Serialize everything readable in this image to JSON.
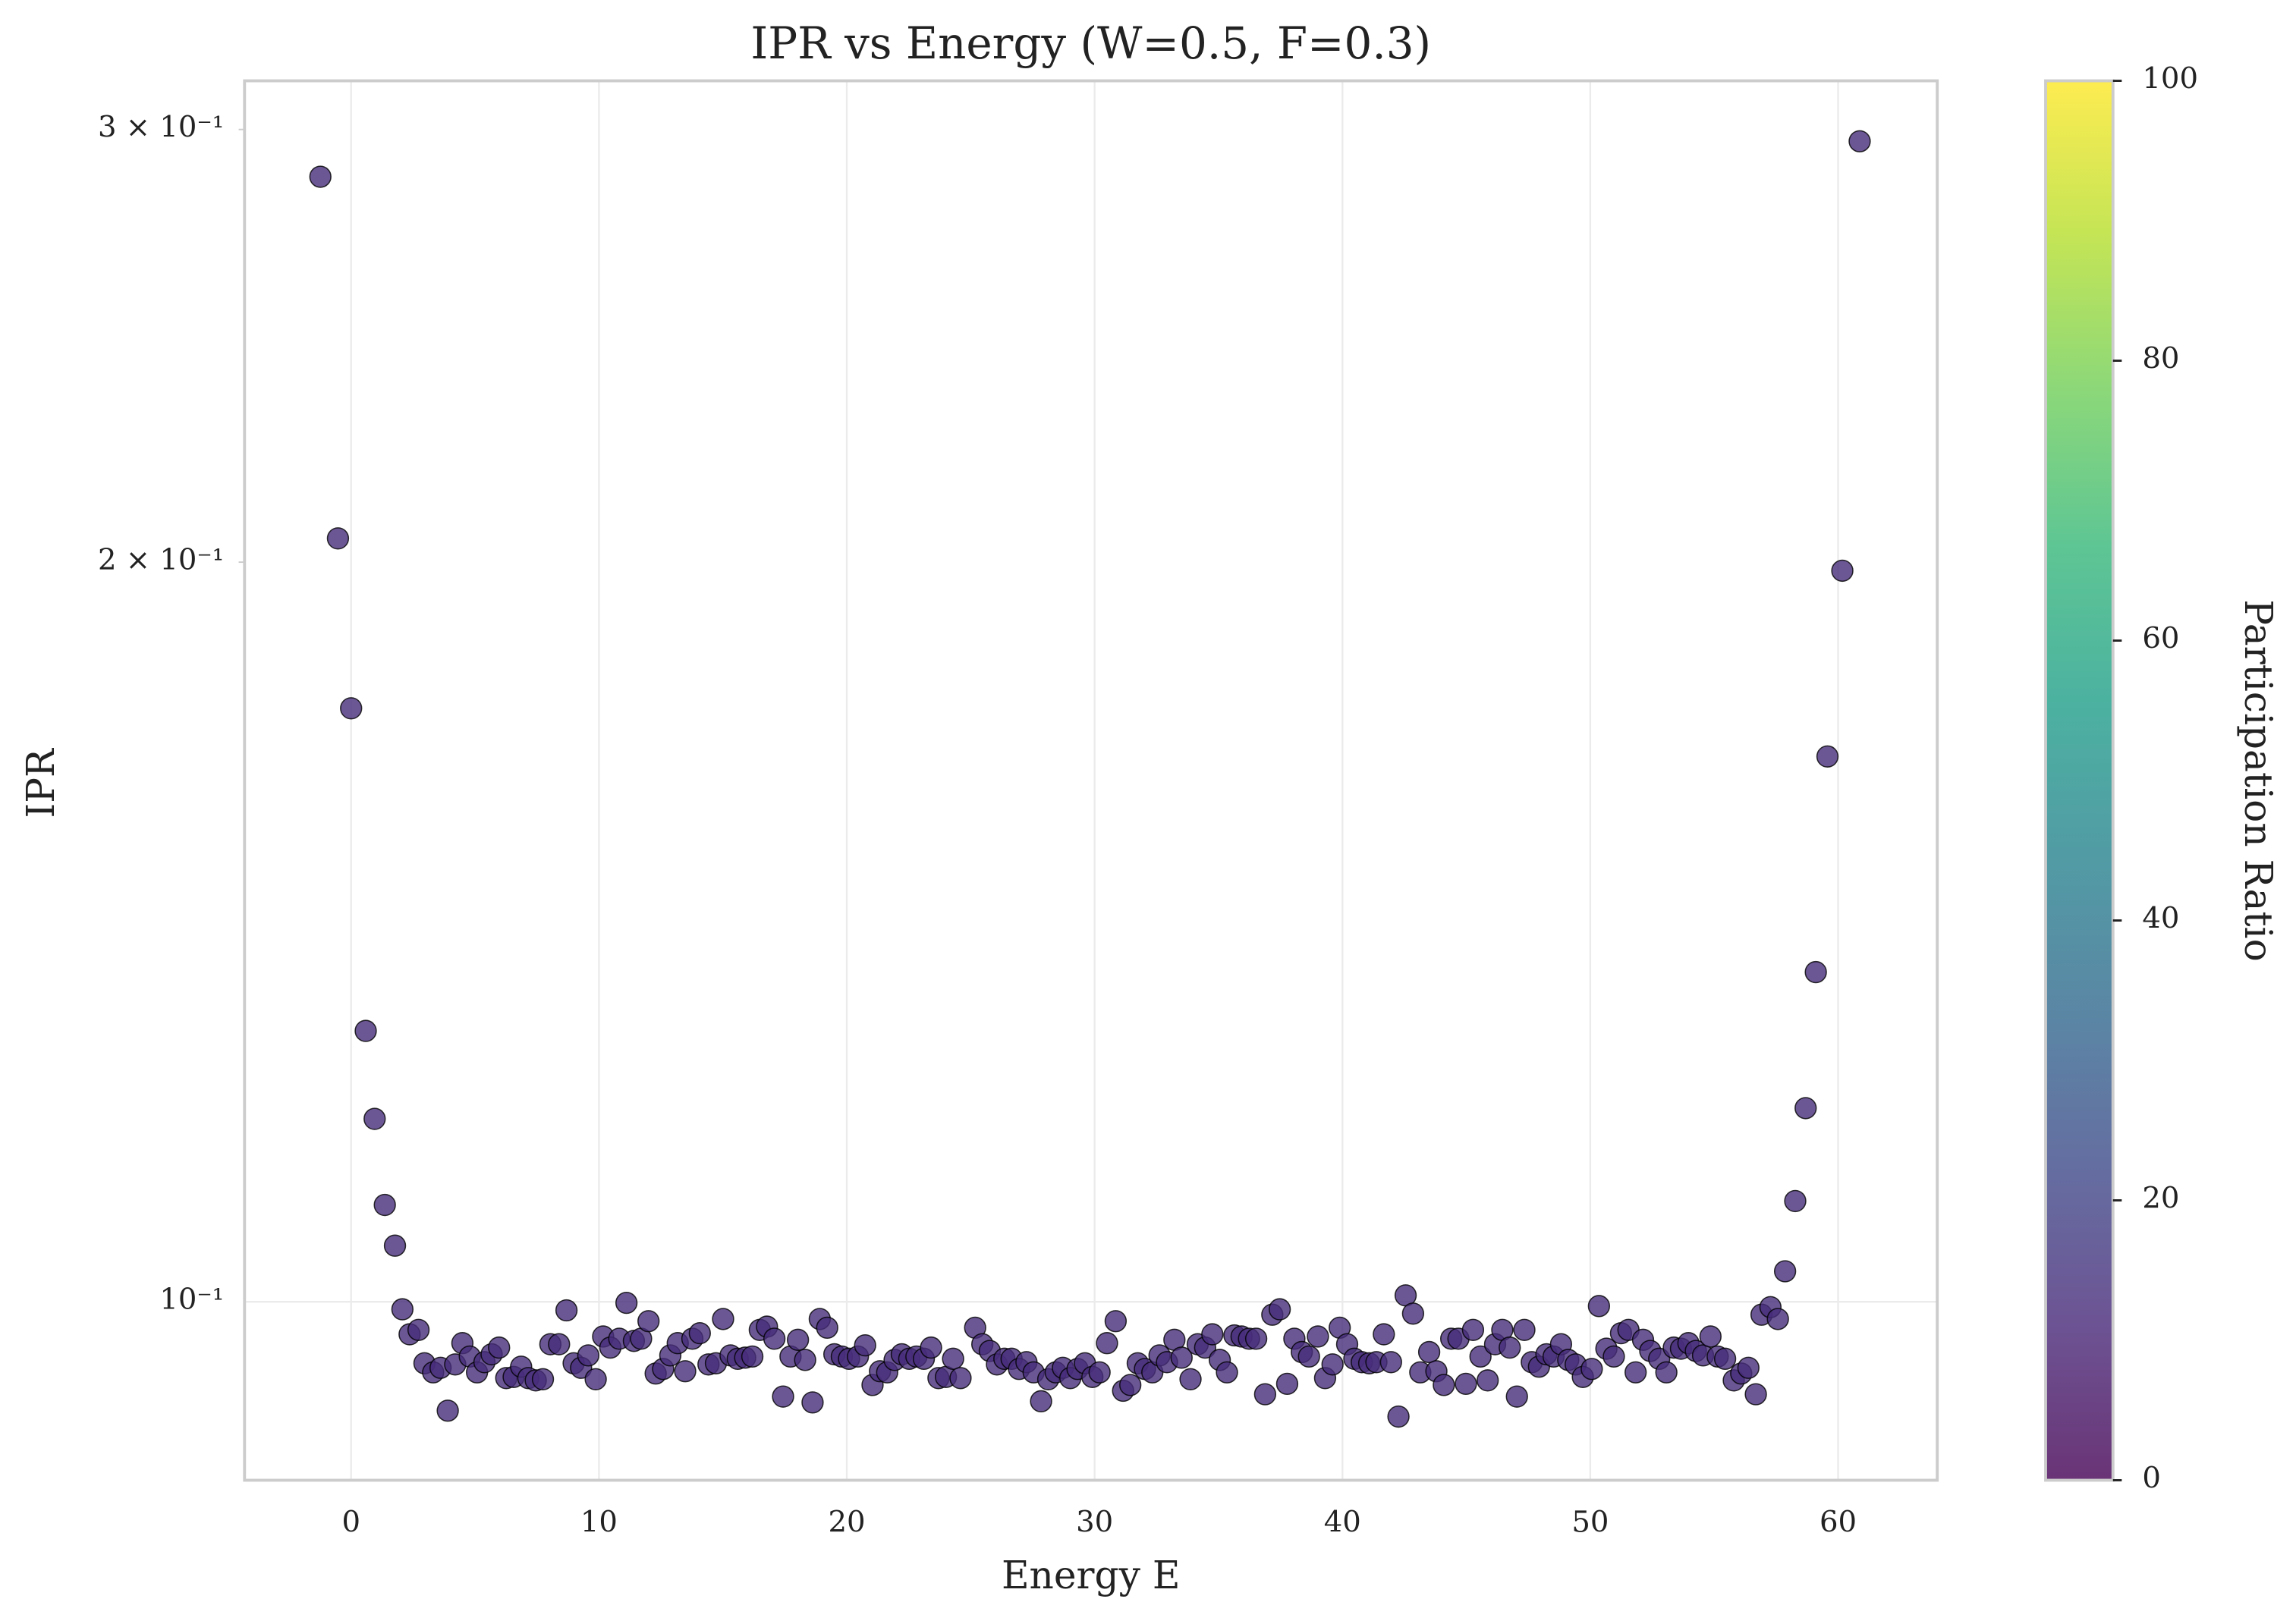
{
  "chart_data": {
    "type": "scatter",
    "title": "IPR vs Energy (W=0.5, F=0.3)",
    "xlabel": "Energy E",
    "ylabel": "IPR",
    "log_y": true,
    "grid": true,
    "color": "#472d7b",
    "xlim": [
      -4.3,
      64.0
    ],
    "ylim": [
      0.0846,
      0.314
    ],
    "xticks": [
      0,
      10,
      20,
      30,
      40,
      50,
      60
    ],
    "y_major_ticks": [
      {
        "value": 0.1,
        "label": "10⁻¹"
      }
    ],
    "y_minor_ticks": [
      {
        "value": 0.2,
        "label": "2 × 10⁻¹"
      },
      {
        "value": 0.3,
        "label": "3 × 10⁻¹"
      }
    ],
    "colorbar": {
      "label": "Participation Ratio",
      "lim": [
        0,
        100
      ],
      "ticks": [
        0,
        20,
        40,
        60,
        80,
        100
      ],
      "colors": [
        "#440154",
        "#482878",
        "#3e4989",
        "#31688e",
        "#26828e",
        "#1f9e89",
        "#35b779",
        "#6ece58",
        "#b5de2b",
        "#fde725"
      ]
    },
    "x": [
      -1.24,
      -0.53,
      0.0,
      0.59,
      0.95,
      1.36,
      1.77,
      2.07,
      2.36,
      2.72,
      2.96,
      3.31,
      3.61,
      3.9,
      4.2,
      4.49,
      4.79,
      5.08,
      5.38,
      5.67,
      5.97,
      6.26,
      6.56,
      6.86,
      7.15,
      7.45,
      7.74,
      8.04,
      8.39,
      8.69,
      8.98,
      9.28,
      9.57,
      9.87,
      10.17,
      10.46,
      10.82,
      11.11,
      11.41,
      11.7,
      12.0,
      12.29,
      12.59,
      12.88,
      13.18,
      13.48,
      13.77,
      14.07,
      14.42,
      14.72,
      15.01,
      15.31,
      15.6,
      15.9,
      16.19,
      16.49,
      16.78,
      17.08,
      17.43,
      17.73,
      18.03,
      18.32,
      18.62,
      18.91,
      19.21,
      19.5,
      19.8,
      20.09,
      20.45,
      20.74,
      21.04,
      21.34,
      21.63,
      21.93,
      22.22,
      22.52,
      22.81,
      23.11,
      23.4,
      23.7,
      24.0,
      24.29,
      24.59,
      25.18,
      25.47,
      25.77,
      26.06,
      26.36,
      26.65,
      26.95,
      27.25,
      27.54,
      27.84,
      28.13,
      28.43,
      28.72,
      29.02,
      29.31,
      29.61,
      29.91,
      30.2,
      30.5,
      30.85,
      31.15,
      31.44,
      31.74,
      32.03,
      32.33,
      32.62,
      32.92,
      33.22,
      33.51,
      33.87,
      34.16,
      34.46,
      34.75,
      35.05,
      35.34,
      35.64,
      35.93,
      36.23,
      36.52,
      36.88,
      37.17,
      37.47,
      37.77,
      38.06,
      38.36,
      38.65,
      39.01,
      39.3,
      39.6,
      39.89,
      40.19,
      40.48,
      40.78,
      41.08,
      41.37,
      41.67,
      41.96,
      42.26,
      42.55,
      42.85,
      43.14,
      43.5,
      43.79,
      44.09,
      44.39,
      44.68,
      44.98,
      45.27,
      45.57,
      45.86,
      46.16,
      46.45,
      46.75,
      47.04,
      47.34,
      47.64,
      47.93,
      48.23,
      48.52,
      48.82,
      49.11,
      49.41,
      49.7,
      50.06,
      50.35,
      50.65,
      50.95,
      51.24,
      51.54,
      51.83,
      52.13,
      52.42,
      52.78,
      53.07,
      53.37,
      53.66,
      53.96,
      54.26,
      54.55,
      54.85,
      55.14,
      55.44,
      55.79,
      56.09,
      56.38,
      56.68,
      56.91,
      57.27,
      57.57,
      57.86,
      58.27,
      58.69,
      59.1,
      59.57,
      60.17,
      60.87
    ],
    "values": [
      0.287,
      0.2045,
      0.1744,
      0.1289,
      0.1187,
      0.1095,
      0.1054,
      0.0993,
      0.097,
      0.0974,
      0.0944,
      0.0936,
      0.094,
      0.0903,
      0.0943,
      0.0962,
      0.095,
      0.0936,
      0.0945,
      0.0952,
      0.0958,
      0.0931,
      0.0932,
      0.0941,
      0.0931,
      0.0929,
      0.093,
      0.0961,
      0.0961,
      0.0992,
      0.0944,
      0.094,
      0.0951,
      0.093,
      0.0968,
      0.0958,
      0.0966,
      0.0999,
      0.0964,
      0.0966,
      0.0982,
      0.0935,
      0.0939,
      0.0951,
      0.0962,
      0.0937,
      0.0966,
      0.0971,
      0.0943,
      0.0944,
      0.0984,
      0.0951,
      0.0948,
      0.0949,
      0.095,
      0.0974,
      0.0977,
      0.0966,
      0.0915,
      0.095,
      0.0965,
      0.0947,
      0.091,
      0.0984,
      0.0976,
      0.0952,
      0.095,
      0.0948,
      0.095,
      0.096,
      0.0925,
      0.0937,
      0.0936,
      0.0947,
      0.0952,
      0.0948,
      0.095,
      0.0948,
      0.0958,
      0.0931,
      0.0932,
      0.0948,
      0.0931,
      0.0976,
      0.0961,
      0.0955,
      0.0943,
      0.0948,
      0.0948,
      0.0939,
      0.0945,
      0.0936,
      0.0911,
      0.093,
      0.0936,
      0.094,
      0.0931,
      0.0939,
      0.0944,
      0.0932,
      0.0936,
      0.0962,
      0.0982,
      0.092,
      0.0925,
      0.0944,
      0.0939,
      0.0936,
      0.0951,
      0.0945,
      0.0965,
      0.0949,
      0.093,
      0.0961,
      0.0958,
      0.097,
      0.0947,
      0.0936,
      0.0969,
      0.0968,
      0.0966,
      0.0966,
      0.0917,
      0.0988,
      0.0993,
      0.0926,
      0.0966,
      0.0954,
      0.095,
      0.0968,
      0.0931,
      0.0943,
      0.0976,
      0.0961,
      0.0948,
      0.0945,
      0.0944,
      0.0945,
      0.097,
      0.0945,
      0.0898,
      0.1006,
      0.0989,
      0.0936,
      0.0954,
      0.0937,
      0.0925,
      0.0966,
      0.0966,
      0.0926,
      0.0974,
      0.095,
      0.0929,
      0.0961,
      0.0974,
      0.0958,
      0.0915,
      0.0974,
      0.0945,
      0.0941,
      0.0952,
      0.095,
      0.0961,
      0.0947,
      0.0943,
      0.0932,
      0.0939,
      0.0996,
      0.0957,
      0.095,
      0.0971,
      0.0974,
      0.0936,
      0.0965,
      0.0955,
      0.0948,
      0.0936,
      0.0958,
      0.0957,
      0.0962,
      0.0955,
      0.0951,
      0.0968,
      0.095,
      0.0948,
      0.0929,
      0.0935,
      0.094,
      0.0917,
      0.0988,
      0.0995,
      0.0984,
      0.1029,
      0.1099,
      0.1199,
      0.1362,
      0.1667,
      0.1984,
      0.2967
    ]
  }
}
